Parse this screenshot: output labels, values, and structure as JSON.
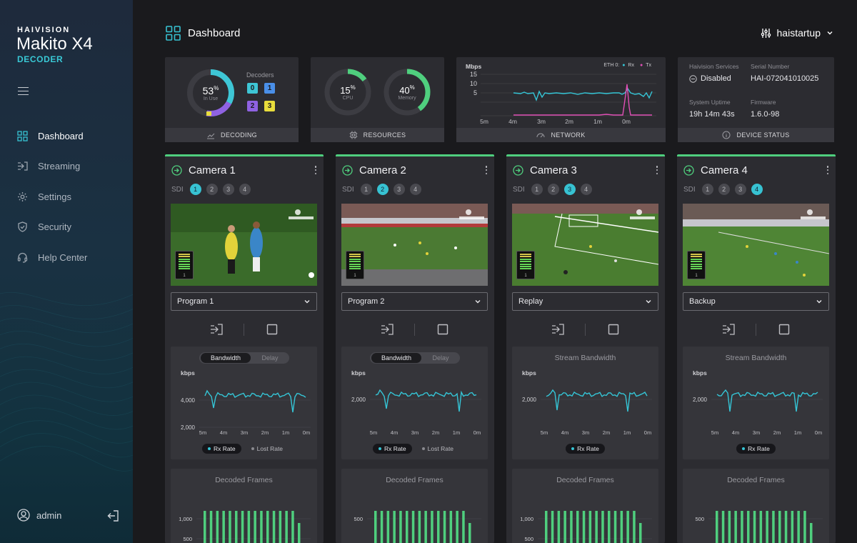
{
  "brand": {
    "company": "HAIVISION",
    "product": "Makito X4",
    "edition": "DECODER"
  },
  "nav": [
    {
      "label": "Dashboard",
      "icon": "dashboard-icon",
      "active": true
    },
    {
      "label": "Streaming",
      "icon": "streaming-icon",
      "active": false
    },
    {
      "label": "Settings",
      "icon": "gear-icon",
      "active": false
    },
    {
      "label": "Security",
      "icon": "shield-icon",
      "active": false
    },
    {
      "label": "Help Center",
      "icon": "headset-icon",
      "active": false
    }
  ],
  "user": {
    "name": "admin"
  },
  "header": {
    "title": "Dashboard",
    "account": "haistartup"
  },
  "decoding": {
    "percent": "53",
    "percent_unit": "%",
    "caption": "In Use",
    "label": "Decoders",
    "decoders": [
      "0",
      "1",
      "2",
      "3"
    ],
    "decoder_colors": [
      "#3ec6d5",
      "#4a8fe8",
      "#8f62e2",
      "#e8dd3c"
    ],
    "footer": "DECODING",
    "value": 0.53
  },
  "resources": {
    "cpu": {
      "value": "15",
      "unit": "%",
      "caption": "CPU",
      "fraction": 0.15
    },
    "memory": {
      "value": "40",
      "unit": "%",
      "caption": "Memory",
      "fraction": 0.4
    },
    "footer": "RESOURCES"
  },
  "network": {
    "unit": "Mbps",
    "eth": "ETH 0:",
    "rx": "Rx",
    "tx": "Tx",
    "y_ticks": [
      "15",
      "10",
      "5"
    ],
    "x_ticks": [
      "5m",
      "4m",
      "3m",
      "2m",
      "1m",
      "0m"
    ],
    "footer": "NETWORK",
    "rx_color": "#35c5d6",
    "tx_color": "#e04fb5"
  },
  "device": {
    "services_label": "Haivision Services",
    "services_value": "Disabled",
    "serial_label": "Serial Number",
    "serial_value": "HAI-072041010025",
    "uptime_label": "System Uptime",
    "uptime_value": "19h 14m 43s",
    "firmware_label": "Firmware",
    "firmware_value": "1.6.0-98",
    "footer": "DEVICE STATUS"
  },
  "cameras": [
    {
      "name": "Camera 1",
      "sdi_label": "SDI",
      "sdi": [
        "1",
        "2",
        "3",
        "4"
      ],
      "active_sdi": 0,
      "program": "Program 1",
      "chart_mode": "toggle",
      "toggle_a": "Bandwidth",
      "toggle_b": "Delay",
      "bw_title": "",
      "bw_unit": "kbps",
      "bw_ticks": [
        "4,000",
        "2,000"
      ],
      "x_ticks": [
        "5m",
        "4m",
        "3m",
        "2m",
        "1m",
        "0m"
      ],
      "legend_rx": "Rx Rate",
      "legend_lost": "Lost Rate",
      "frames_title": "Decoded Frames",
      "frames_ticks": [
        "1,000",
        "500"
      ],
      "vu_level": "1"
    },
    {
      "name": "Camera 2",
      "sdi_label": "SDI",
      "sdi": [
        "1",
        "2",
        "3",
        "4"
      ],
      "active_sdi": 1,
      "program": "Program 2",
      "chart_mode": "toggle",
      "toggle_a": "Bandwidth",
      "toggle_b": "Delay",
      "bw_title": "",
      "bw_unit": "kbps",
      "bw_ticks": [
        "2,000"
      ],
      "x_ticks": [
        "5m",
        "4m",
        "3m",
        "2m",
        "1m",
        "0m"
      ],
      "legend_rx": "Rx Rate",
      "legend_lost": "Lost Rate",
      "frames_title": "Decoded Frames",
      "frames_ticks": [
        "500"
      ],
      "vu_level": "1"
    },
    {
      "name": "Camera 3",
      "sdi_label": "SDI",
      "sdi": [
        "1",
        "2",
        "3",
        "4"
      ],
      "active_sdi": 2,
      "program": "Replay",
      "chart_mode": "title",
      "toggle_a": "",
      "toggle_b": "",
      "bw_title": "Stream Bandwidth",
      "bw_unit": "kbps",
      "bw_ticks": [
        "2,000"
      ],
      "x_ticks": [
        "5m",
        "4m",
        "3m",
        "2m",
        "1m",
        "0m"
      ],
      "legend_rx": "Rx Rate",
      "legend_lost": "",
      "frames_title": "Decoded Frames",
      "frames_ticks": [
        "1,000",
        "500"
      ],
      "vu_level": "1"
    },
    {
      "name": "Camera 4",
      "sdi_label": "SDI",
      "sdi": [
        "1",
        "2",
        "3",
        "4"
      ],
      "active_sdi": 3,
      "program": "Backup",
      "chart_mode": "title",
      "toggle_a": "",
      "toggle_b": "",
      "bw_title": "Stream Bandwidth",
      "bw_unit": "kbps",
      "bw_ticks": [
        "2,000"
      ],
      "x_ticks": [
        "5m",
        "4m",
        "3m",
        "2m",
        "1m",
        "0m"
      ],
      "legend_rx": "Rx Rate",
      "legend_lost": "",
      "frames_title": "Decoded Frames",
      "frames_ticks": [
        "500"
      ],
      "vu_level": "1"
    }
  ],
  "colors": {
    "accent": "#37c2d2",
    "status_ok": "#4fcf7e",
    "tx": "#e04fb5",
    "panel": "#2c2c31"
  }
}
